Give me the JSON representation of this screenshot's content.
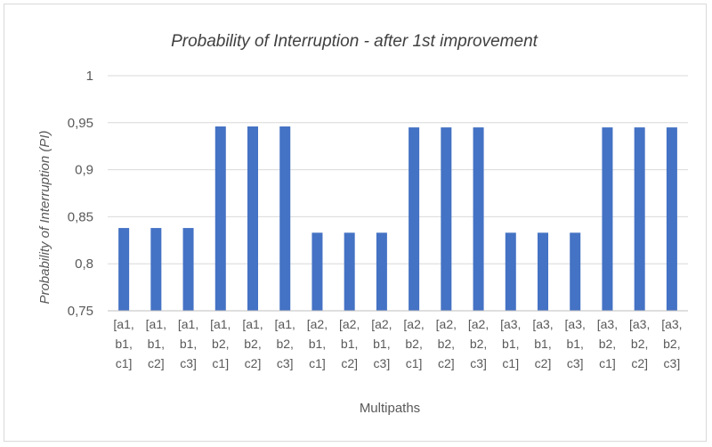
{
  "chart_data": {
    "type": "bar",
    "title": "Probability of Interruption - after 1st improvement",
    "xlabel": "Multipaths",
    "ylabel": "Probability of Interruption  (PI)",
    "ylim": [
      0.75,
      1
    ],
    "yticks": [
      "0,75",
      "0,8",
      "0,85",
      "0,9",
      "0,95",
      "1"
    ],
    "ytick_values": [
      0.75,
      0.8,
      0.85,
      0.9,
      0.95,
      1
    ],
    "grid": true,
    "legend": "none",
    "bar_color": "#4472c4",
    "categories": [
      [
        "[a1,",
        "b1,",
        "c1]"
      ],
      [
        "[a1,",
        "b1,",
        "c2]"
      ],
      [
        "[a1,",
        "b1,",
        "c3]"
      ],
      [
        "[a1,",
        "b2,",
        "c1]"
      ],
      [
        "[a1,",
        "b2,",
        "c2]"
      ],
      [
        "[a1,",
        "b2,",
        "c3]"
      ],
      [
        "[a2,",
        "b1,",
        "c1]"
      ],
      [
        "[a2,",
        "b1,",
        "c2]"
      ],
      [
        "[a2,",
        "b1,",
        "c3]"
      ],
      [
        "[a2,",
        "b2,",
        "c1]"
      ],
      [
        "[a2,",
        "b2,",
        "c2]"
      ],
      [
        "[a2,",
        "b2,",
        "c3]"
      ],
      [
        "[a3,",
        "b1,",
        "c1]"
      ],
      [
        "[a3,",
        "b1,",
        "c2]"
      ],
      [
        "[a3,",
        "b1,",
        "c3]"
      ],
      [
        "[a3,",
        "b2,",
        "c1]"
      ],
      [
        "[a3,",
        "b2,",
        "c2]"
      ],
      [
        "[a3,",
        "b2,",
        "c3]"
      ]
    ],
    "values": [
      0.838,
      0.838,
      0.838,
      0.946,
      0.946,
      0.946,
      0.833,
      0.833,
      0.833,
      0.945,
      0.945,
      0.945,
      0.833,
      0.833,
      0.833,
      0.945,
      0.945,
      0.945
    ]
  }
}
